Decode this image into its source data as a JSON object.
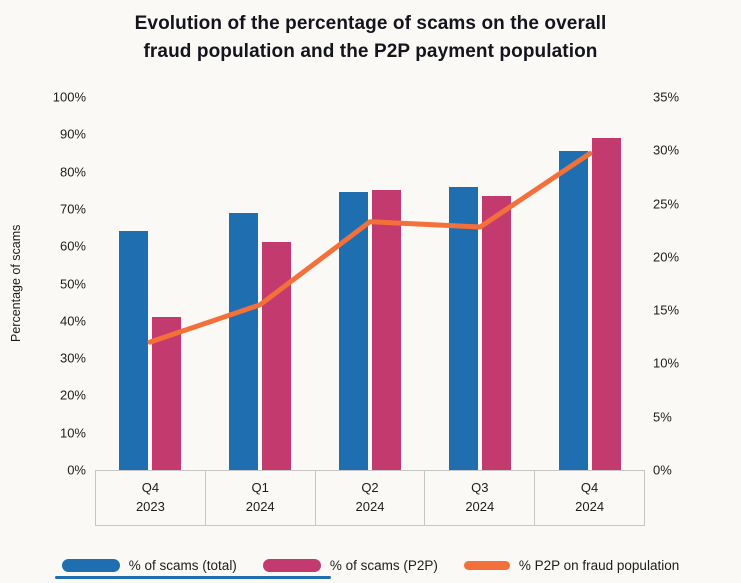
{
  "title": {
    "line1": "Evolution of the percentage of scams on the overall",
    "line2": "fraud population and the P2P payment population"
  },
  "accent_colors": {
    "bar_total_blue": "#1f6eb0",
    "bar_p2p_pink": "#c33b6e",
    "line_orange": "#f4703b",
    "footer_divider_blue": "#1f6eb0"
  },
  "chart_data": {
    "type": "bar",
    "subtype": "dual-axis bar + line combo",
    "title": "Evolution of the percentage of scams on the overall fraud population and the P2P payment population",
    "categories": [
      "Q4 2023",
      "Q1 2024",
      "Q2 2024",
      "Q3 2024",
      "Q4 2024"
    ],
    "series": [
      {
        "name": "% of scams (total)",
        "type": "bar",
        "axis": "left",
        "color": "#1f6eb0",
        "values": [
          64,
          69,
          74.5,
          76,
          85.5
        ]
      },
      {
        "name": "% of scams (P2P)",
        "type": "bar",
        "axis": "left",
        "color": "#c33b6e",
        "values": [
          41,
          61,
          75,
          73.5,
          89
        ]
      },
      {
        "name": "% P2P on fraud population",
        "type": "line",
        "axis": "right",
        "color": "#f4703b",
        "values": [
          12,
          15.5,
          23.3,
          22.8,
          29.7
        ]
      }
    ],
    "left_axis": {
      "label": "Percentage of scams",
      "min": 0,
      "max": 100,
      "step": 10,
      "ticks_top_to_bottom": [
        "100%",
        "90%",
        "80%",
        "70%",
        "60%",
        "50%",
        "40%",
        "30%",
        "20%",
        "10%",
        "0%"
      ]
    },
    "right_axis": {
      "label": "",
      "min": 0,
      "max": 35,
      "step": 5,
      "ticks_top_to_bottom": [
        "35%",
        "30%",
        "25%",
        "20%",
        "15%",
        "10%",
        "5%",
        "0%"
      ]
    },
    "grid": false,
    "legend_position": "bottom"
  }
}
